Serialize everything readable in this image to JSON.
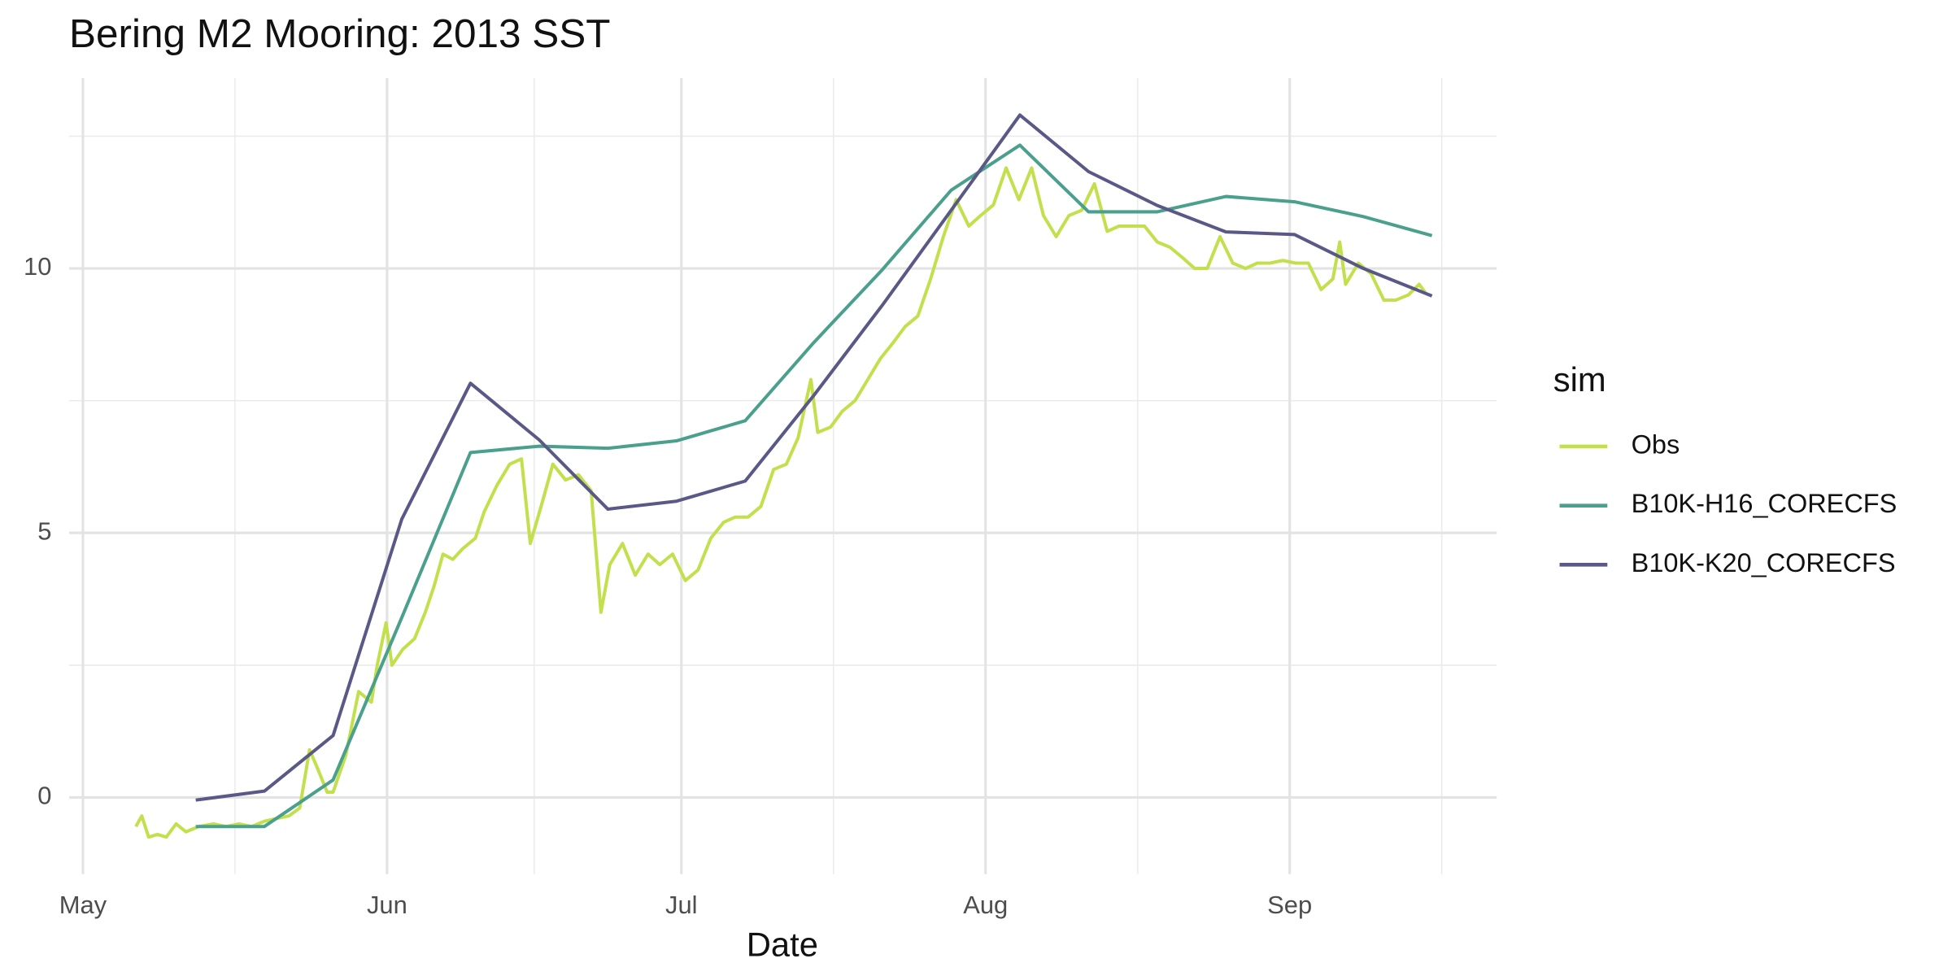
{
  "chart_data": {
    "type": "line",
    "title": "Bering M2 Mooring: 2013 SST",
    "x_label": "Date",
    "legend_title": "sim",
    "legend_position": "right",
    "grid": true,
    "xlim": [
      -1.4,
      144.1
    ],
    "xticks": [
      {
        "value": 0,
        "label": "May"
      },
      {
        "value": 31,
        "label": "Jun"
      },
      {
        "value": 61,
        "label": "Jul"
      },
      {
        "value": 92,
        "label": "Aug"
      },
      {
        "value": 123,
        "label": "Sep"
      }
    ],
    "x_minor_ticks": [
      15.5,
      46,
      76.5,
      107.5,
      138.5
    ],
    "ylim": [
      -1.45,
      13.6
    ],
    "yticks": [
      0,
      5,
      10
    ],
    "y_minor_ticks": [
      2.5,
      7.5,
      12.5
    ],
    "series": [
      {
        "name": "Obs",
        "color": "#c2e04c",
        "x": [
          5.4,
          6,
          6.7,
          7.6,
          8.5,
          9.5,
          10.5,
          11.8,
          13.3,
          14.6,
          15.9,
          17.2,
          18.5,
          19.7,
          21,
          22.1,
          23.1,
          23.8,
          24.9,
          25.5,
          26.8,
          28.1,
          29.4,
          30,
          30.9,
          31.5,
          32.6,
          33.8,
          34.9,
          35.8,
          36.7,
          37.7,
          38.7,
          40,
          40.9,
          42.2,
          43.5,
          44.7,
          45.6,
          46.7,
          47.9,
          49.2,
          50.5,
          51.8,
          52.8,
          53.7,
          55,
          56.3,
          57.6,
          58.8,
          60.1,
          61.4,
          62.7,
          64,
          65.3,
          66.5,
          67.8,
          69.1,
          70.4,
          71.7,
          72.9,
          74.2,
          74.9,
          76.2,
          77.4,
          78.7,
          80,
          81.3,
          82.6,
          83.8,
          85.1,
          86.4,
          87.7,
          89,
          90.3,
          91.5,
          92.8,
          94.1,
          95.4,
          96.7,
          97.9,
          99.2,
          100.5,
          101.8,
          103.1,
          104.4,
          105.6,
          106.9,
          108.2,
          109.5,
          110.8,
          112.1,
          113.3,
          114.6,
          115.9,
          117.2,
          118.5,
          119.7,
          121,
          122.3,
          123.6,
          124.9,
          126.2,
          127.4,
          128.1,
          128.7,
          130,
          131.3,
          132.6,
          133.8,
          135.1,
          136.2,
          136.8
        ],
        "values": [
          -0.55,
          -0.35,
          -0.75,
          -0.7,
          -0.75,
          -0.5,
          -0.65,
          -0.55,
          -0.5,
          -0.55,
          -0.5,
          -0.55,
          -0.45,
          -0.4,
          -0.35,
          -0.2,
          0.9,
          0.6,
          0.1,
          0.1,
          0.8,
          2.0,
          1.8,
          2.5,
          3.3,
          2.5,
          2.8,
          3.0,
          3.5,
          4.0,
          4.6,
          4.5,
          4.7,
          4.9,
          5.4,
          5.9,
          6.3,
          6.4,
          4.8,
          5.5,
          6.3,
          6.0,
          6.1,
          5.8,
          3.5,
          4.4,
          4.8,
          4.2,
          4.6,
          4.4,
          4.6,
          4.1,
          4.3,
          4.9,
          5.2,
          5.3,
          5.3,
          5.5,
          6.2,
          6.3,
          6.8,
          7.9,
          6.9,
          7.0,
          7.3,
          7.5,
          7.9,
          8.3,
          8.6,
          8.9,
          9.1,
          9.8,
          10.6,
          11.3,
          10.8,
          11.0,
          11.2,
          11.9,
          11.3,
          11.9,
          11.0,
          10.6,
          11.0,
          11.1,
          11.6,
          10.7,
          10.8,
          10.8,
          10.8,
          10.5,
          10.4,
          10.2,
          10.0,
          10.0,
          10.6,
          10.1,
          10.0,
          10.1,
          10.1,
          10.15,
          10.1,
          10.1,
          9.6,
          9.8,
          10.5,
          9.7,
          10.1,
          9.9,
          9.4,
          9.4,
          9.5,
          9.7,
          9.55
        ]
      },
      {
        "name": "B10K-H16_CORECFS",
        "color": "#4aa08c",
        "x": [
          11.5,
          18.5,
          25.5,
          32.5,
          39.5,
          46.5,
          53.5,
          60.5,
          67.5,
          74.5,
          81.5,
          88.5,
          95.5,
          102.5,
          109.5,
          116.5,
          123.5,
          130.5,
          137.5
        ],
        "values": [
          -0.55,
          -0.55,
          0.33,
          3.4,
          6.52,
          6.64,
          6.6,
          6.74,
          7.12,
          8.6,
          9.98,
          11.48,
          12.33,
          11.07,
          11.07,
          11.36,
          11.26,
          10.98,
          10.62
        ]
      },
      {
        "name": "B10K-K20_CORECFS",
        "color": "#595887",
        "x": [
          11.5,
          18.5,
          25.5,
          32.5,
          39.5,
          46.5,
          53.5,
          60.5,
          67.5,
          74.5,
          81.5,
          88.5,
          95.5,
          102.5,
          109.5,
          116.5,
          123.5,
          130.5,
          137.5
        ],
        "values": [
          -0.05,
          0.12,
          1.17,
          5.26,
          7.83,
          6.76,
          5.45,
          5.6,
          5.98,
          7.6,
          9.31,
          11.1,
          12.9,
          11.83,
          11.19,
          10.69,
          10.64,
          10.0,
          9.48
        ]
      }
    ]
  }
}
